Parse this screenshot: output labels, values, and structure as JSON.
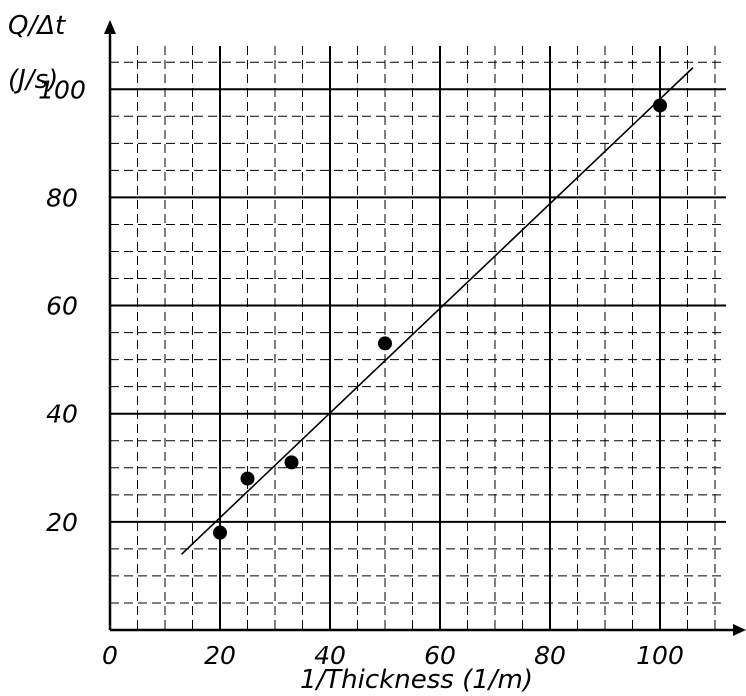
{
  "chart_data": {
    "type": "scatter",
    "ylabel_line1": "Q/Δt",
    "ylabel_line2": "(J/s)",
    "xlabel": "1/Thickness (1/m)",
    "xlim": [
      0,
      112
    ],
    "ylim": [
      0,
      108
    ],
    "x_ticks": [
      0,
      20,
      40,
      60,
      80,
      100
    ],
    "x_tick_labels": [
      "0",
      "20",
      "40",
      "60",
      "80",
      "100"
    ],
    "y_ticks": [
      20,
      40,
      60,
      80,
      100
    ],
    "y_tick_labels": [
      "20",
      "40",
      "60",
      "80",
      "100"
    ],
    "grid": {
      "major": 20,
      "minor": 5
    },
    "points": [
      {
        "x": 20,
        "y": 18
      },
      {
        "x": 25,
        "y": 28
      },
      {
        "x": 33,
        "y": 31
      },
      {
        "x": 50,
        "y": 53
      },
      {
        "x": 100,
        "y": 97
      }
    ],
    "fit_line": {
      "x1": 13,
      "y1": 14,
      "x2": 106,
      "y2": 104
    }
  }
}
